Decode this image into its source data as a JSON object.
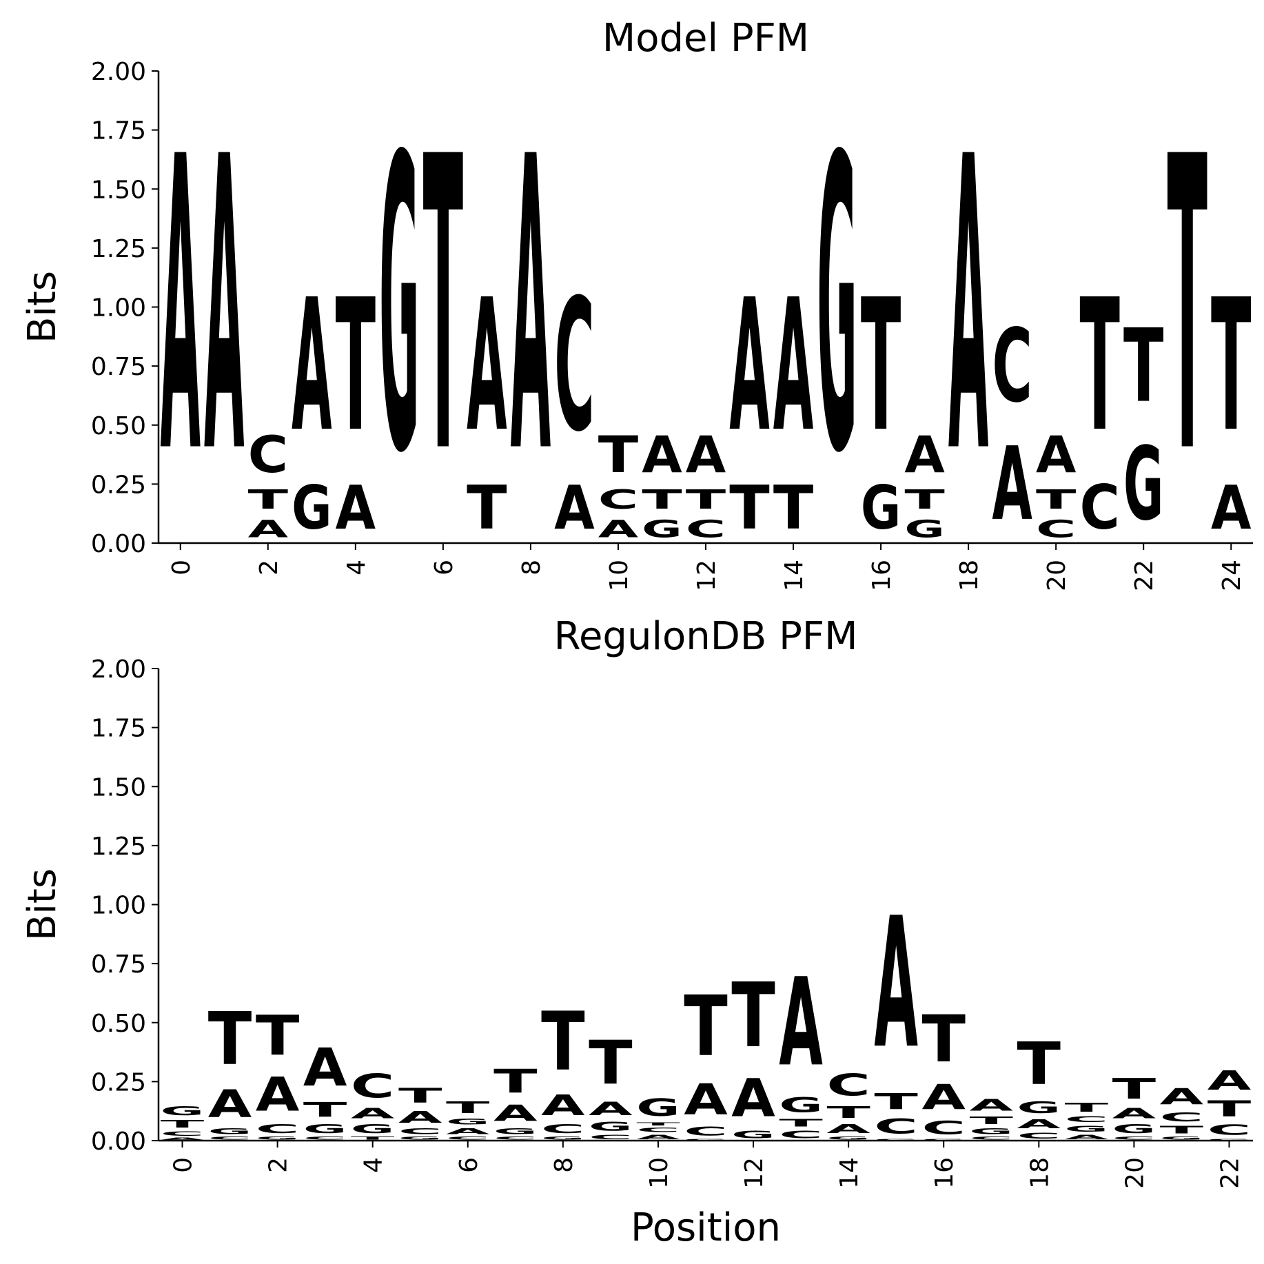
{
  "colors": {
    "A": "#ff0000",
    "C": "#0000ff",
    "G": "#ffa500",
    "T": "#008000"
  },
  "chart_data": [
    {
      "type": "sequence-logo",
      "title": "Model PFM",
      "xlabel": "",
      "ylabel": "Bits",
      "ylim": [
        0,
        2
      ],
      "yticks": [
        "0.00",
        "0.25",
        "0.50",
        "0.75",
        "1.00",
        "1.25",
        "1.50",
        "1.75",
        "2.00"
      ],
      "xticks": [
        "0",
        "2",
        "4",
        "6",
        "8",
        "10",
        "12",
        "14",
        "16",
        "18",
        "20",
        "22",
        "24"
      ],
      "positions": [
        [
          [
            "A",
            2.0
          ]
        ],
        [
          [
            "A",
            2.0
          ]
        ],
        [
          [
            "A",
            0.12
          ],
          [
            "T",
            0.13
          ],
          [
            "C",
            0.25
          ]
        ],
        [
          [
            "G",
            0.3
          ],
          [
            "A",
            0.9
          ]
        ],
        [
          [
            "A",
            0.3
          ],
          [
            "T",
            0.9
          ]
        ],
        [
          [
            "G",
            2.0
          ]
        ],
        [
          [
            "T",
            2.0
          ]
        ],
        [
          [
            "T",
            0.3
          ],
          [
            "A",
            0.9
          ]
        ],
        [
          [
            "A",
            2.0
          ]
        ],
        [
          [
            "A",
            0.3
          ],
          [
            "C",
            0.9
          ]
        ],
        [
          [
            "A",
            0.12
          ],
          [
            "C",
            0.13
          ],
          [
            "T",
            0.25
          ]
        ],
        [
          [
            "G",
            0.12
          ],
          [
            "T",
            0.13
          ],
          [
            "A",
            0.25
          ]
        ],
        [
          [
            "C",
            0.12
          ],
          [
            "T",
            0.13
          ],
          [
            "A",
            0.25
          ]
        ],
        [
          [
            "T",
            0.3
          ],
          [
            "A",
            0.9
          ]
        ],
        [
          [
            "T",
            0.3
          ],
          [
            "A",
            0.9
          ]
        ],
        [
          [
            "G",
            2.0
          ]
        ],
        [
          [
            "G",
            0.3
          ],
          [
            "T",
            0.9
          ]
        ],
        [
          [
            "G",
            0.12
          ],
          [
            "T",
            0.13
          ],
          [
            "A",
            0.25
          ]
        ],
        [
          [
            "A",
            2.0
          ]
        ],
        [
          [
            "A",
            0.5
          ],
          [
            "C",
            0.5
          ]
        ],
        [
          [
            "C",
            0.12
          ],
          [
            "T",
            0.13
          ],
          [
            "A",
            0.25
          ]
        ],
        [
          [
            "C",
            0.3
          ],
          [
            "T",
            0.9
          ]
        ],
        [
          [
            "G",
            0.5
          ],
          [
            "T",
            0.5
          ]
        ],
        [
          [
            "T",
            2.0
          ]
        ],
        [
          [
            "A",
            0.3
          ],
          [
            "T",
            0.9
          ]
        ]
      ]
    },
    {
      "type": "sequence-logo",
      "title": "RegulonDB PFM",
      "xlabel": "Position",
      "ylabel": "Bits",
      "ylim": [
        0,
        2
      ],
      "yticks": [
        "0.00",
        "0.25",
        "0.50",
        "0.75",
        "1.00",
        "1.25",
        "1.50",
        "1.75",
        "2.00"
      ],
      "xticks": [
        "0",
        "2",
        "4",
        "6",
        "8",
        "10",
        "12",
        "14",
        "16",
        "18",
        "20",
        "22"
      ],
      "positions": [
        [
          [
            "A",
            0.015
          ],
          [
            "C",
            0.03
          ],
          [
            "T",
            0.05
          ],
          [
            "G",
            0.06
          ]
        ],
        [
          [
            "C",
            0.02
          ],
          [
            "G",
            0.04
          ],
          [
            "A",
            0.19
          ],
          [
            "T",
            0.36
          ]
        ],
        [
          [
            "G",
            0.02
          ],
          [
            "C",
            0.06
          ],
          [
            "A",
            0.23
          ],
          [
            "T",
            0.27
          ]
        ],
        [
          [
            "C",
            0.02
          ],
          [
            "G",
            0.06
          ],
          [
            "T",
            0.1
          ],
          [
            "A",
            0.26
          ]
        ],
        [
          [
            "T",
            0.02
          ],
          [
            "G",
            0.06
          ],
          [
            "A",
            0.07
          ],
          [
            "C",
            0.16
          ]
        ],
        [
          [
            "G",
            0.02
          ],
          [
            "C",
            0.04
          ],
          [
            "A",
            0.08
          ],
          [
            "T",
            0.1
          ]
        ],
        [
          [
            "C",
            0.02
          ],
          [
            "A",
            0.04
          ],
          [
            "G",
            0.04
          ],
          [
            "T",
            0.08
          ]
        ],
        [
          [
            "C",
            0.02
          ],
          [
            "G",
            0.04
          ],
          [
            "A",
            0.11
          ],
          [
            "T",
            0.16
          ]
        ],
        [
          [
            "G",
            0.02
          ],
          [
            "C",
            0.06
          ],
          [
            "A",
            0.14
          ],
          [
            "T",
            0.4
          ]
        ],
        [
          [
            "C",
            0.03
          ],
          [
            "G",
            0.06
          ],
          [
            "A",
            0.09
          ],
          [
            "T",
            0.3
          ]
        ],
        [
          [
            "A",
            0.03
          ],
          [
            "C",
            0.03
          ],
          [
            "T",
            0.02
          ],
          [
            "G",
            0.12
          ]
        ],
        [
          [
            "G",
            0.01
          ],
          [
            "C",
            0.06
          ],
          [
            "A",
            0.21
          ],
          [
            "T",
            0.41
          ]
        ],
        [
          [
            "G",
            0.05
          ],
          [
            "A",
            0.26
          ],
          [
            "T",
            0.44
          ]
        ],
        [
          [
            "C",
            0.05
          ],
          [
            "T",
            0.05
          ],
          [
            "G",
            0.1
          ],
          [
            "A",
            0.6
          ]
        ],
        [
          [
            "G",
            0.02
          ],
          [
            "A",
            0.06
          ],
          [
            "T",
            0.08
          ],
          [
            "C",
            0.15
          ]
        ],
        [
          [
            "G",
            0.01
          ],
          [
            "C",
            0.1
          ],
          [
            "T",
            0.11
          ],
          [
            "A",
            0.89
          ]
        ],
        [
          [
            "G",
            0.01
          ],
          [
            "C",
            0.09
          ],
          [
            "A",
            0.17
          ],
          [
            "T",
            0.32
          ]
        ],
        [
          [
            "C",
            0.02
          ],
          [
            "G",
            0.04
          ],
          [
            "T",
            0.05
          ],
          [
            "A",
            0.08
          ]
        ],
        [
          [
            "C",
            0.04
          ],
          [
            "A",
            0.06
          ],
          [
            "G",
            0.08
          ],
          [
            "T",
            0.29
          ]
        ],
        [
          [
            "A",
            0.03
          ],
          [
            "G",
            0.04
          ],
          [
            "C",
            0.04
          ],
          [
            "T",
            0.06
          ]
        ],
        [
          [
            "C",
            0.02
          ],
          [
            "G",
            0.06
          ],
          [
            "A",
            0.07
          ],
          [
            "T",
            0.14
          ]
        ],
        [
          [
            "G",
            0.02
          ],
          [
            "T",
            0.05
          ],
          [
            "C",
            0.06
          ],
          [
            "A",
            0.11
          ]
        ],
        [
          [
            "G",
            0.01
          ],
          [
            "C",
            0.07
          ],
          [
            "T",
            0.11
          ],
          [
            "A",
            0.13
          ]
        ]
      ]
    }
  ]
}
